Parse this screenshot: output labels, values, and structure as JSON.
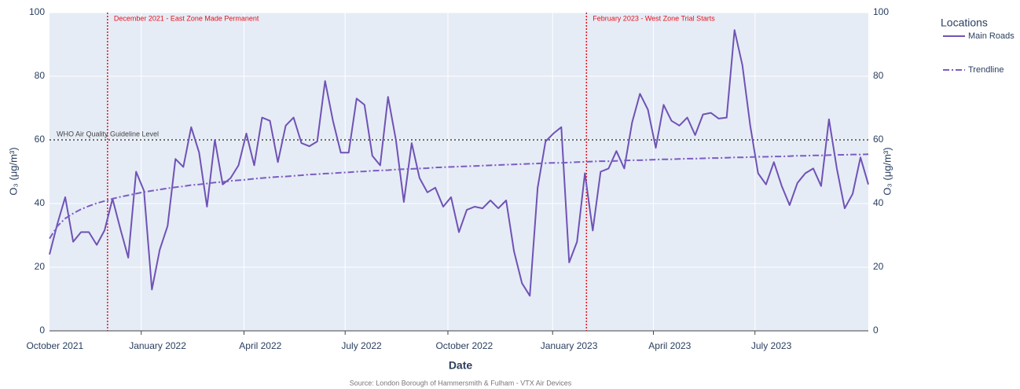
{
  "chart_data": {
    "type": "line",
    "x_title": "Date",
    "y_title": "O₃ (μg/m³)",
    "y2_title": "O₃ (μg/m³)",
    "source": "Source: London Borough of Hammersmith & Fulham - VTX Air Devices",
    "legend_title": "Locations",
    "legend": "right",
    "grid": true,
    "xlim": [
      0,
      104
    ],
    "xticks": [
      {
        "value": -1.4,
        "label": "October 2021"
      },
      {
        "value": 11.65,
        "label": "January 2022"
      },
      {
        "value": 24.7,
        "label": "April 2022"
      },
      {
        "value": 37.55,
        "label": "July 2022"
      },
      {
        "value": 50.6,
        "label": "October 2022"
      },
      {
        "value": 63.9,
        "label": "January 2023"
      },
      {
        "value": 76.7,
        "label": "April 2023"
      },
      {
        "value": 89.6,
        "label": "July 2023"
      }
    ],
    "ylim": [
      0,
      100
    ],
    "yticks": [
      0,
      20,
      40,
      60,
      80,
      100
    ],
    "y2lim": [
      0,
      100
    ],
    "y2ticks": [
      0,
      20,
      40,
      60,
      80,
      100
    ],
    "series": [
      {
        "name": "Main Roads",
        "color": "#7052b5",
        "dash": "solid",
        "values": [
          24,
          33.6,
          42,
          28,
          31,
          31,
          27,
          31.6,
          41.5,
          32,
          23,
          50,
          44,
          13,
          25.5,
          33,
          54,
          51.5,
          64,
          56,
          39,
          60,
          46,
          48,
          52,
          62,
          52,
          67,
          66,
          53,
          64.5,
          67,
          59,
          58,
          59.5,
          78.5,
          66,
          56,
          56,
          73,
          71,
          55,
          52,
          73.5,
          60,
          40.5,
          59,
          48,
          43.5,
          45,
          39,
          42,
          31,
          38,
          39,
          38.5,
          41,
          38.5,
          41,
          25,
          15,
          11,
          45,
          59.5,
          62,
          64,
          21.5,
          28,
          49.5,
          31.5,
          50,
          51,
          56.5,
          51,
          65.5,
          74.5,
          69.5,
          57.5,
          71,
          66,
          64.5,
          67,
          61.5,
          68,
          68.5,
          66.7,
          67,
          94.5,
          83.5,
          64.5,
          49.5,
          46,
          53,
          45.5,
          39.5,
          46.5,
          49.5,
          51,
          45.5,
          66.5,
          51,
          38.5,
          43,
          54.5,
          46
        ]
      },
      {
        "name": "Trendline",
        "color": "#7c5cc4",
        "dash": "dashdot",
        "values": [
          29.0,
          32.9,
          35.3,
          36.9,
          38.2,
          39.2,
          40.1,
          40.8,
          41.5,
          42.1,
          42.6,
          43.1,
          43.6,
          44.0,
          44.4,
          44.8,
          45.1,
          45.4,
          45.8,
          46.0,
          46.3,
          46.6,
          46.8,
          47.1,
          47.3,
          47.5,
          47.8,
          48.0,
          48.2,
          48.4,
          48.5,
          48.7,
          48.9,
          49.1,
          49.2,
          49.4,
          49.5,
          49.7,
          49.8,
          50.0,
          50.1,
          50.3,
          50.4,
          50.5,
          50.7,
          50.8,
          50.9,
          51.0,
          51.1,
          51.3,
          51.4,
          51.5,
          51.6,
          51.7,
          51.8,
          51.9,
          52.0,
          52.1,
          52.2,
          52.3,
          52.4,
          52.5,
          52.6,
          52.7,
          52.8,
          52.8,
          52.9,
          53.0,
          53.1,
          53.2,
          53.3,
          53.3,
          53.4,
          53.5,
          53.6,
          53.6,
          53.7,
          53.8,
          53.9,
          53.9,
          54.0,
          54.1,
          54.1,
          54.2,
          54.3,
          54.3,
          54.4,
          54.5,
          54.5,
          54.6,
          54.7,
          54.7,
          54.8,
          54.8,
          54.9,
          55.0,
          55.0,
          55.1,
          55.1,
          55.2,
          55.3,
          55.3,
          55.4,
          55.4,
          55.5
        ]
      }
    ],
    "annotations": [
      {
        "x": 7.37,
        "text": "December 2021 - East Zone Made Permanent",
        "color": "#e8101a"
      },
      {
        "x": 68.2,
        "text": "February 2023 - West Zone Trial Starts",
        "color": "#e8101a"
      }
    ],
    "hline": {
      "y": 60,
      "text": "WHO Air Quality Guideline Level",
      "color": "#222222"
    }
  }
}
